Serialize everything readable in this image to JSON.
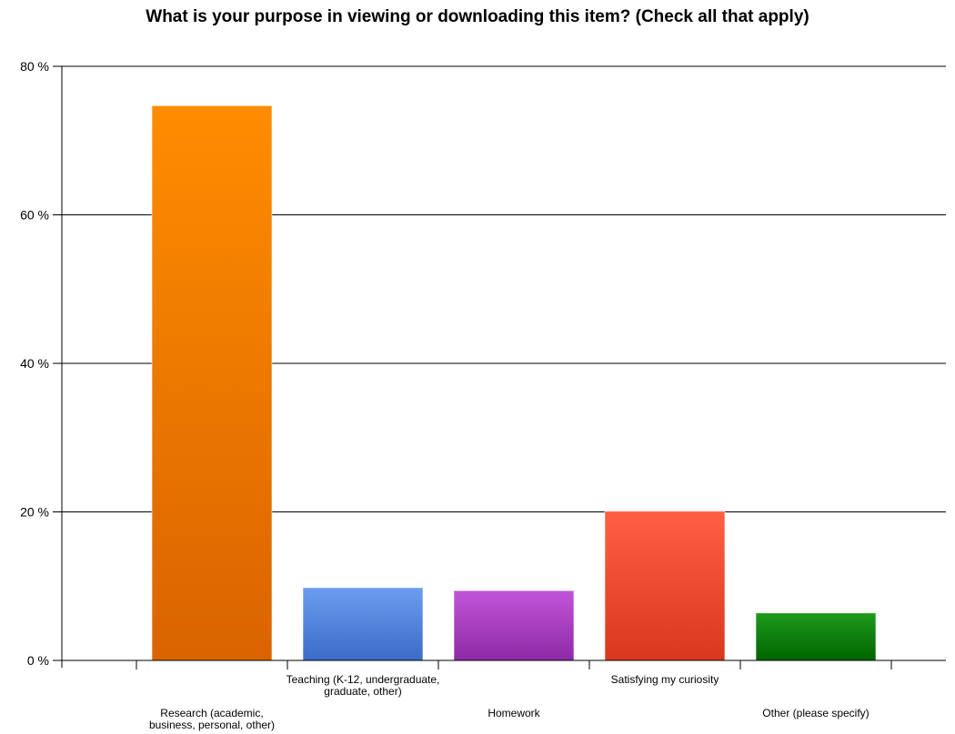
{
  "chart_data": {
    "type": "bar",
    "title": "What is your purpose in viewing or downloading this item? (Check all that apply)",
    "xlabel": "",
    "ylabel": "",
    "ylim": [
      0,
      80
    ],
    "y_ticks": [
      0,
      20,
      40,
      60,
      80
    ],
    "y_tick_labels": [
      "0 %",
      "20 %",
      "40 %",
      "60 %",
      "80 %"
    ],
    "grid": true,
    "categories": [
      "Research (academic, business, personal, other)",
      "Teaching (K-12, undergraduate, graduate, other)",
      "Homework",
      "Satisfying my curiosity",
      "Other (please specify)"
    ],
    "category_label_lines": [
      [
        "Research (academic,",
        "business, personal, other)"
      ],
      [
        "Teaching (K-12, undergraduate,",
        "graduate, other)"
      ],
      [
        "Homework"
      ],
      [
        "Satisfying my curiosity"
      ],
      [
        "Other (please specify)"
      ]
    ],
    "values": [
      74.7,
      9.8,
      9.4,
      20.1,
      6.4
    ],
    "colors": [
      [
        "#ff8c00",
        "#d96400"
      ],
      [
        "#6b9df0",
        "#3a6cc8"
      ],
      [
        "#c055d8",
        "#8e2aa6"
      ],
      [
        "#ff5f45",
        "#d8381e"
      ],
      [
        "#1e9a1e",
        "#006400"
      ]
    ]
  }
}
